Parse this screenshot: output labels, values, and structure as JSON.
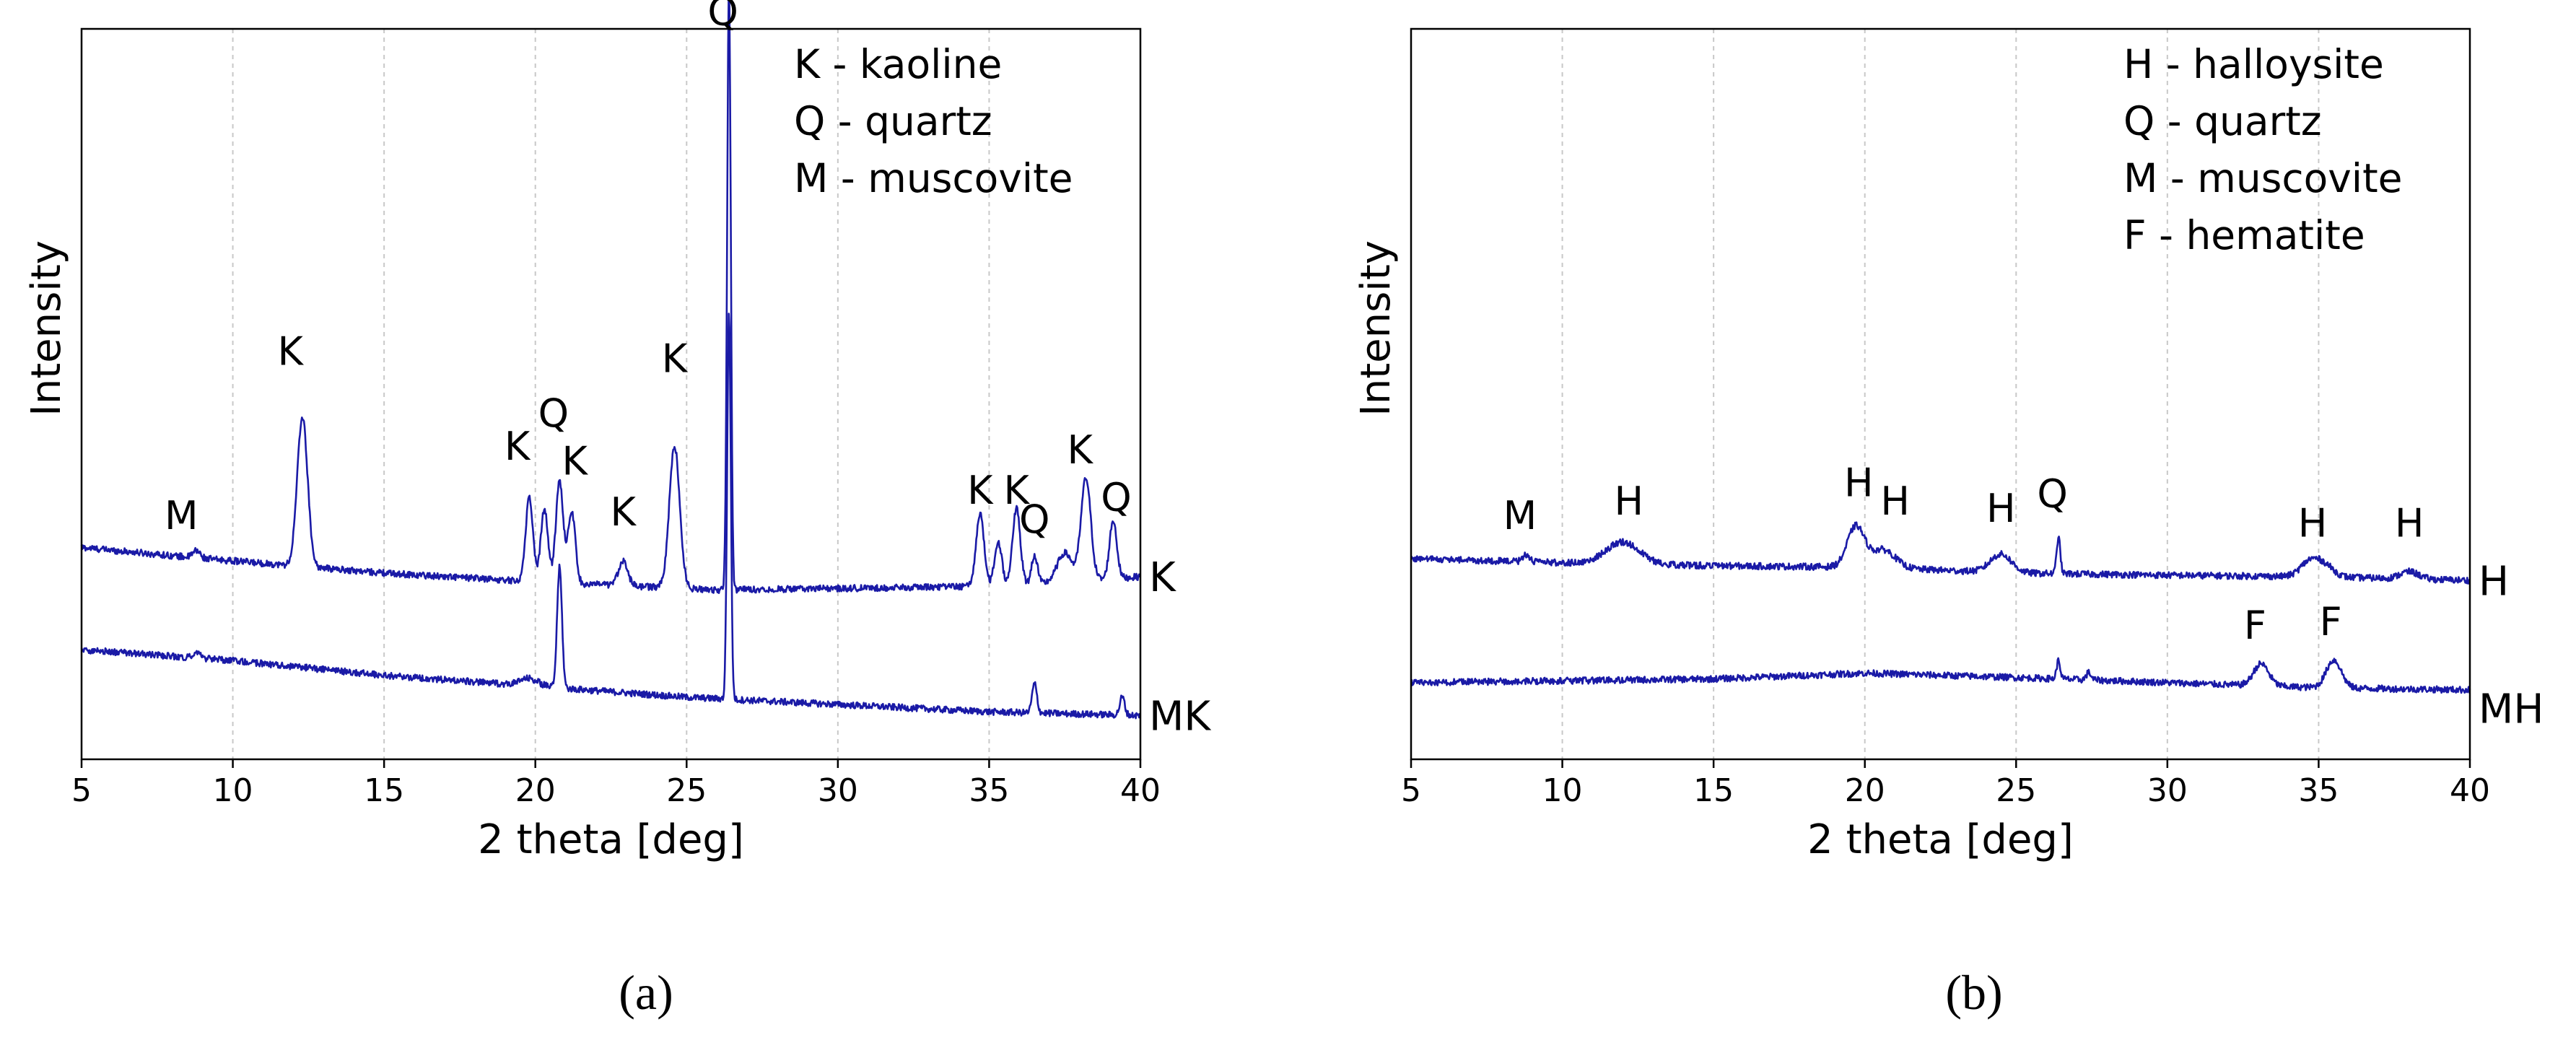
{
  "colors": {
    "series": "#1a1aa6",
    "axis": "#000000",
    "grid": "#c8c8c8"
  },
  "chart_data": [
    {
      "type": "line",
      "panel_label": "a",
      "xlabel": "2 theta [deg]",
      "ylabel": "Intensity",
      "xlim": [
        5,
        40
      ],
      "ylim": [
        0,
        100
      ],
      "xticks": [
        "5",
        "10",
        "15",
        "20",
        "25",
        "30",
        "35",
        "40"
      ],
      "grid": "vertical dashed",
      "legend_position": "top-right",
      "legend": [
        "K - kaoline",
        "Q - quartz",
        "M - muscovite"
      ],
      "series": [
        {
          "name": "K",
          "baseline": [
            [
              5,
              29
            ],
            [
              9,
              27.5
            ],
            [
              15,
              25.5
            ],
            [
              20,
              24.3
            ],
            [
              26,
              23.2
            ],
            [
              32,
              23.5
            ],
            [
              36,
              23.8
            ],
            [
              40,
              25
            ]
          ],
          "peaks": [
            [
              8.8,
              1.0,
              0.12
            ],
            [
              12.3,
              20.5,
              0.17
            ],
            [
              19.8,
              11.5,
              0.12
            ],
            [
              20.3,
              10.0,
              0.12
            ],
            [
              20.8,
              14.0,
              0.12
            ],
            [
              21.2,
              10.0,
              0.12
            ],
            [
              22.9,
              3.5,
              0.15
            ],
            [
              24.6,
              19.5,
              0.17
            ],
            [
              26.4,
              83.0,
              0.06
            ],
            [
              34.7,
              10.0,
              0.13
            ],
            [
              35.3,
              6.0,
              0.12
            ],
            [
              35.9,
              10.5,
              0.13
            ],
            [
              36.5,
              4.0,
              0.1
            ],
            [
              37.5,
              4.0,
              0.25
            ],
            [
              38.2,
              14.0,
              0.16
            ],
            [
              39.1,
              8.0,
              0.12
            ]
          ]
        },
        {
          "name": "MK",
          "baseline": [
            [
              5,
              15
            ],
            [
              10,
              13.5
            ],
            [
              15,
              11.5
            ],
            [
              20,
              10.0
            ],
            [
              25,
              8.5
            ],
            [
              30,
              7.5
            ],
            [
              35,
              6.5
            ],
            [
              40,
              6
            ]
          ],
          "peaks": [
            [
              8.8,
              0.8,
              0.12
            ],
            [
              19.8,
              1.0,
              0.3
            ],
            [
              20.8,
              16.5,
              0.08
            ],
            [
              26.4,
              53.0,
              0.06
            ],
            [
              36.5,
              4.0,
              0.08
            ],
            [
              39.4,
              2.5,
              0.08
            ]
          ]
        }
      ],
      "peak_labels": [
        {
          "text": "M",
          "x": 8.3,
          "y": 31.5
        },
        {
          "text": "K",
          "x": 11.9,
          "y": 54.0
        },
        {
          "text": "K",
          "x": 19.4,
          "y": 41.0
        },
        {
          "text": "Q",
          "x": 20.6,
          "y": 45.5
        },
        {
          "text": "K",
          "x": 21.3,
          "y": 39.0
        },
        {
          "text": "K",
          "x": 22.9,
          "y": 32.0
        },
        {
          "text": "K",
          "x": 24.6,
          "y": 53.0
        },
        {
          "text": "Q",
          "x": 26.2,
          "y": 100.5
        },
        {
          "text": "K",
          "x": 34.7,
          "y": 35.0
        },
        {
          "text": "K",
          "x": 35.9,
          "y": 35.0
        },
        {
          "text": "Q",
          "x": 36.5,
          "y": 31.0
        },
        {
          "text": "K",
          "x": 38.0,
          "y": 40.5
        },
        {
          "text": "Q",
          "x": 39.2,
          "y": 34.0
        }
      ],
      "series_labels": [
        {
          "text": "K",
          "y": 23.0
        },
        {
          "text": "MK",
          "y": 4.0
        }
      ],
      "caption": "(a)"
    },
    {
      "type": "line",
      "panel_label": "b",
      "xlabel": "2 theta [deg]",
      "ylabel": "Intensity",
      "xlim": [
        5,
        40
      ],
      "ylim": [
        0,
        100
      ],
      "xticks": [
        "5",
        "10",
        "15",
        "20",
        "25",
        "30",
        "35",
        "40"
      ],
      "grid": "vertical dashed",
      "legend_position": "top-right",
      "legend": [
        "H - halloysite",
        "Q - quartz",
        "M - muscovite",
        "F - hematite"
      ],
      "series": [
        {
          "name": "H",
          "baseline": [
            [
              5,
              27.5
            ],
            [
              9,
              27.0
            ],
            [
              15,
              26.5
            ],
            [
              20,
              26.3
            ],
            [
              25,
              25.5
            ],
            [
              30,
              25.2
            ],
            [
              35,
              25.0
            ],
            [
              40,
              24.5
            ]
          ],
          "peaks": [
            [
              8.8,
              1.0,
              0.12
            ],
            [
              12.0,
              3.0,
              0.55
            ],
            [
              19.7,
              5.5,
              0.28
            ],
            [
              20.6,
              2.5,
              0.4
            ],
            [
              24.5,
              2.5,
              0.35
            ],
            [
              26.4,
              5.0,
              0.06
            ],
            [
              34.7,
              2.0,
              0.3
            ],
            [
              35.2,
              1.5,
              0.3
            ],
            [
              38.0,
              1.0,
              0.3
            ]
          ]
        },
        {
          "name": "MH",
          "baseline": [
            [
              5,
              10.5
            ],
            [
              15,
              11.0
            ],
            [
              20,
              11.8
            ],
            [
              25,
              11.2
            ],
            [
              30,
              10.5
            ],
            [
              35,
              9.8
            ],
            [
              40,
              9.5
            ]
          ],
          "peaks": [
            [
              26.4,
              2.5,
              0.06
            ],
            [
              27.4,
              1.0,
              0.08
            ],
            [
              33.1,
              3.0,
              0.25
            ],
            [
              35.5,
              3.8,
              0.25
            ]
          ]
        }
      ],
      "peak_labels": [
        {
          "text": "M",
          "x": 8.6,
          "y": 31.5
        },
        {
          "text": "H",
          "x": 12.2,
          "y": 33.5
        },
        {
          "text": "H",
          "x": 19.8,
          "y": 36.0
        },
        {
          "text": "H",
          "x": 21.0,
          "y": 33.5
        },
        {
          "text": "H",
          "x": 24.5,
          "y": 32.5
        },
        {
          "text": "Q",
          "x": 26.2,
          "y": 34.5
        },
        {
          "text": "H",
          "x": 34.8,
          "y": 30.5
        },
        {
          "text": "H",
          "x": 38.0,
          "y": 30.5
        },
        {
          "text": "F",
          "x": 32.9,
          "y": 16.5
        },
        {
          "text": "F",
          "x": 35.4,
          "y": 17.0
        }
      ],
      "series_labels": [
        {
          "text": "H",
          "y": 22.5
        },
        {
          "text": "MH",
          "y": 5.0
        }
      ],
      "caption": "(b)"
    }
  ]
}
